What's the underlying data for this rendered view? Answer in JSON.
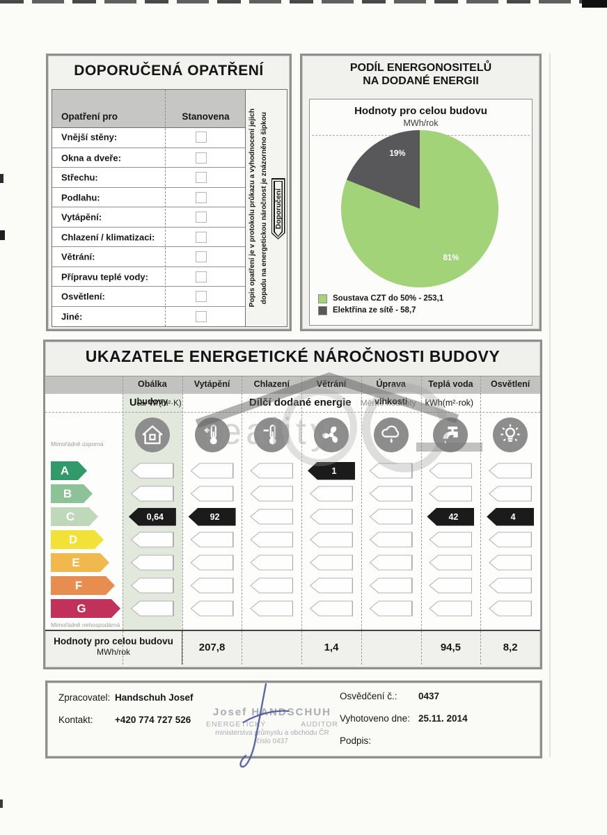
{
  "recommended": {
    "title": "DOPORUČENÁ OPATŘENÍ",
    "col_measure": "Opatření pro",
    "col_set": "Stanovena",
    "rows": [
      "Vnější stěny:",
      "Okna a dveře:",
      "Střechu:",
      "Podlahu:",
      "Vytápění:",
      "Chlazení / klimatizaci:",
      "Větrání:",
      "Přípravu teplé vody:",
      "Osvětlení:",
      "Jiné:"
    ],
    "note_line1": "Popis opatření je v protokolu průkazu a vyhodnocení jejich",
    "note_line2": "dopadu na energetickou náročnost je znázorněno šipkou",
    "arrow_label": "Doporučení"
  },
  "energy_share": {
    "title_line1": "PODÍL ENERGONOSITELŮ",
    "title_line2": "NA DODANÉ ENERGII",
    "subtitle": "Hodnoty pro celou budovu",
    "unit": "MWh/rok",
    "legend": [
      {
        "label": "Soustava CZT do 50% - 253,1",
        "color": "#a2d378",
        "value_pct": 81,
        "pct_label": "81%"
      },
      {
        "label": "Elektřina ze sítě - 58,7",
        "color": "#58585a",
        "value_pct": 19,
        "pct_label": "19%"
      }
    ]
  },
  "chart_data": {
    "type": "pie",
    "title": "PODÍL ENERGONOSITELŮ NA DODANÉ ENERGII",
    "subtitle": "Hodnoty pro celou budovu",
    "unit": "MWh/rok",
    "labels": [
      "Soustava CZT do 50%",
      "Elektřina ze sítě"
    ],
    "values": [
      253.1,
      58.7
    ],
    "percentages": [
      81,
      19
    ],
    "colors": [
      "#a2d378",
      "#58585a"
    ],
    "legend_position": "bottom-left"
  },
  "indicators": {
    "title": "UKAZATELE ENERGETICKÉ NÁROČNOSTI BUDOVY",
    "uem_u": "U",
    "uem_sub": "em",
    "uem_unit": "W/(m²·K)",
    "sub_bold": "Dílčí dodané energie",
    "sub_gray": "Měrné hodnoty",
    "sub_unit": "kWh(m²·rok)",
    "scale_top": "Mimořádně úsporná",
    "scale_bottom": "Mimořádně nehospodárná",
    "grades": [
      {
        "letter": "A",
        "color": "#31996a"
      },
      {
        "letter": "B",
        "color": "#8dc298"
      },
      {
        "letter": "C",
        "color": "#c0d8ba"
      },
      {
        "letter": "D",
        "color": "#f2e237"
      },
      {
        "letter": "E",
        "color": "#f1b94d"
      },
      {
        "letter": "F",
        "color": "#e78d4f",
        "color_note": "orange"
      },
      {
        "letter": "G",
        "color": "#c1315a"
      }
    ],
    "columns": [
      {
        "header": "Obálka budovy",
        "icon": "house-icon",
        "values": {
          "C": "0,64"
        },
        "summary": ""
      },
      {
        "header": "Vytápění",
        "icon": "heating-thermometer-icon",
        "values": {
          "C": "92"
        },
        "summary": "207,8"
      },
      {
        "header": "Chlazení",
        "icon": "cooling-thermometer-icon",
        "values": {},
        "summary": ""
      },
      {
        "header": "Větrání",
        "icon": "fan-icon",
        "values": {
          "A": "1"
        },
        "summary": "1,4"
      },
      {
        "header": "Úprava vlhkosti",
        "icon": "humidity-cloud-icon",
        "values": {},
        "summary": ""
      },
      {
        "header": "Teplá voda",
        "icon": "water-tap-icon",
        "values": {
          "C": "42"
        },
        "summary": "94,5"
      },
      {
        "header": "Osvětlení",
        "icon": "light-bulb-icon",
        "values": {
          "C": "4"
        },
        "summary": "8,2"
      }
    ],
    "summary_label": "Hodnoty pro celou budovu",
    "summary_unit": "MWh/rok",
    "arrow_dark": "#1b1b1b"
  },
  "watermark": {
    "text": "reality"
  },
  "footer": {
    "preparer_label": "Zpracovatel:",
    "preparer": "Handschuh Josef",
    "contact_label": "Kontakt:",
    "contact": "+420 774 727 526",
    "stamp_line1": "Josef HANDSCHUH",
    "stamp_line2a": "ENERGETICKÝ",
    "stamp_line2b": "AUDITOR",
    "stamp_line3": "ministerstva průmyslu a obchodu ČR",
    "stamp_line4": "číslo 0437",
    "cert_label": "Osvědčení č.:",
    "cert": "0437",
    "date_label": "Vyhotoveno dne:",
    "date": "25.11. 2014",
    "signature_label": "Podpis:"
  }
}
